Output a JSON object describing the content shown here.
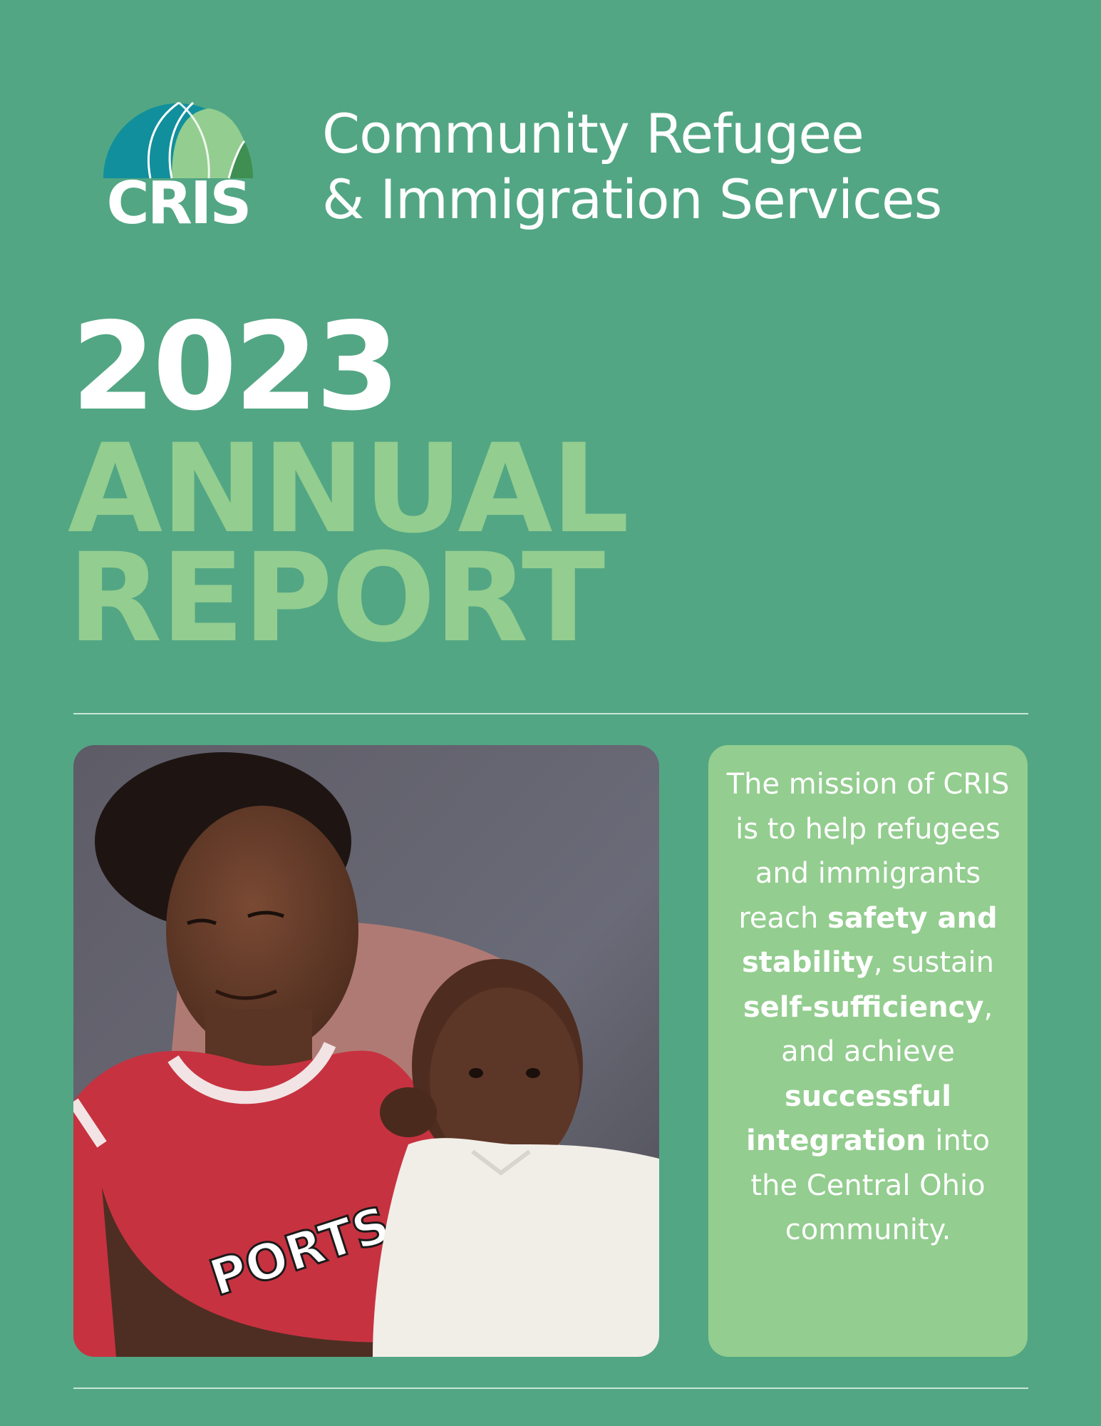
{
  "logo": {
    "text": "CRIS",
    "colors": {
      "teal": "#118f9c",
      "light_green": "#93cd8f",
      "dark_green": "#3f8f53"
    }
  },
  "org_name": {
    "line1": "Community Refugee",
    "line2": "& Immigration Services"
  },
  "year": "2023",
  "title": {
    "line1": "ANNUAL",
    "line2": "REPORT"
  },
  "mission": {
    "p1": "The mission of CRIS is to help refugees and immigrants reach ",
    "b1": "safety and stability",
    "p2": ", sustain ",
    "b2": "self-sufficiency",
    "p3": ", and achieve ",
    "b3": "successful integration",
    "p4": " into the Central Ohio community."
  },
  "photo": {
    "shirt_text": "PORTS"
  },
  "colors": {
    "background": "#52a684",
    "accent_green": "#93cd8f",
    "text": "#ffffff"
  }
}
